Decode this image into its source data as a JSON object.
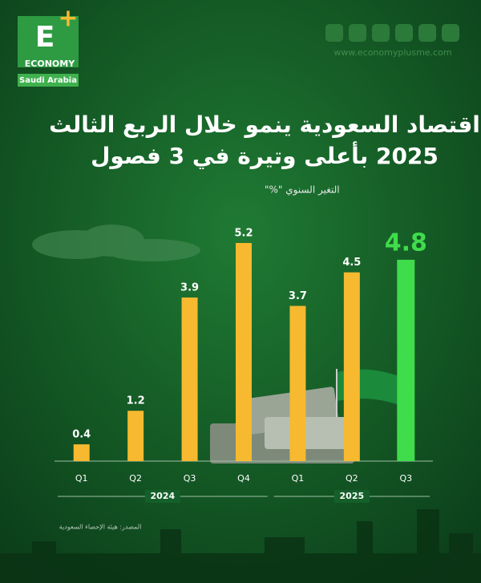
{
  "header": {
    "logo_letter": "E",
    "logo_word": "ECONOMY",
    "logo_region": "Saudi Arabia",
    "website": "www.economyplusme.com"
  },
  "chart_data": {
    "type": "bar",
    "title": [
      "اقتصاد السعودية ينمو خلال الربع الثالث",
      "2025 بأعلى وتيرة في 3 فصول"
    ],
    "subtitle": "التغير السنوي \"%\"",
    "categories": [
      "Q1",
      "Q2",
      "Q3",
      "Q4",
      "Q1",
      "Q2",
      "Q3"
    ],
    "category_groups": [
      "2024",
      "2024",
      "2024",
      "2024",
      "2025",
      "2025",
      "2025"
    ],
    "values": [
      0.4,
      1.2,
      3.9,
      5.2,
      3.7,
      4.5,
      4.8
    ],
    "colors": [
      "#f6b92f",
      "#f6b92f",
      "#f6b92f",
      "#f6b92f",
      "#f6b92f",
      "#f6b92f",
      "#3fdc4b"
    ],
    "source": "المصدر: هيئة الإحصاء السعودية"
  }
}
